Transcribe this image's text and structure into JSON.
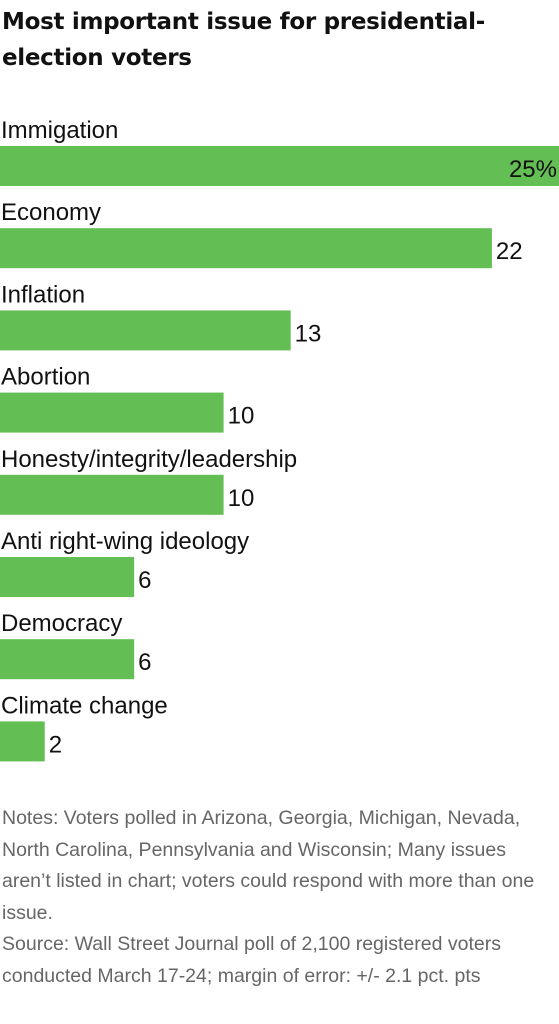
{
  "chart_data": {
    "type": "bar",
    "orientation": "horizontal",
    "title": "Most important issue for presidential-election voters",
    "categories": [
      "Immigation",
      "Economy",
      "Inflation",
      "Abortion",
      "Honesty/integrity/leadership",
      "Anti right-wing ideology",
      "Democracy",
      "Climate change"
    ],
    "values": [
      25,
      22,
      13,
      10,
      10,
      6,
      6,
      2
    ],
    "value_labels": [
      "25%",
      "22",
      "13",
      "10",
      "10",
      "6",
      "6",
      "2"
    ],
    "xlim": [
      0,
      25
    ],
    "grid": false,
    "legend": "none",
    "bar_color": "#63be53"
  },
  "notes": "Notes: Voters polled in Arizona, Georgia, Michigan, Nevada, North Carolina, Pennsylvania and Wisconsin; Many issues aren’t listed in chart; voters could respond with more than one issue.",
  "source": "Source: Wall Street Journal poll of 2,100 registered voters conducted March 17-24; margin of error: +/- 2.1 pct. pts"
}
